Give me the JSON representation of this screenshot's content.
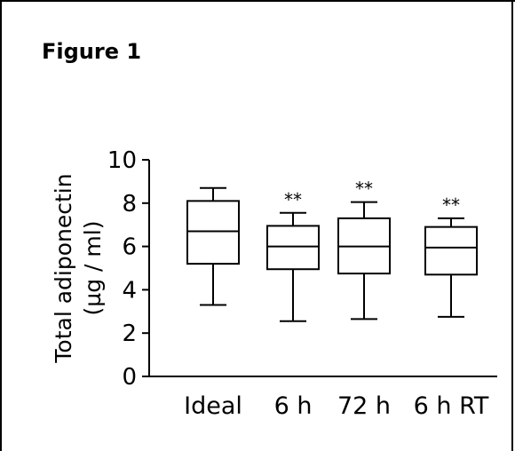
{
  "figure_title": "Figure 1",
  "chart_data": {
    "type": "box",
    "title": "",
    "xlabel": "",
    "ylabel_line1": "Total adiponectin",
    "ylabel_line2": "(µg / ml)",
    "ylim": [
      0,
      10
    ],
    "yticks": [
      "0",
      "2",
      "4",
      "6",
      "8",
      "10"
    ],
    "categories": [
      "Ideal",
      "6 h",
      "72 h",
      "6 h RT"
    ],
    "boxes": [
      {
        "min": 3.3,
        "q1": 5.2,
        "median": 6.7,
        "q3": 8.1,
        "max": 8.7,
        "significance": ""
      },
      {
        "min": 2.55,
        "q1": 4.95,
        "median": 6.0,
        "q3": 6.95,
        "max": 7.55,
        "significance": "**"
      },
      {
        "min": 2.65,
        "q1": 4.75,
        "median": 6.0,
        "q3": 7.3,
        "max": 8.05,
        "significance": "**"
      },
      {
        "min": 2.75,
        "q1": 4.7,
        "median": 5.95,
        "q3": 6.9,
        "max": 7.3,
        "significance": "**"
      }
    ],
    "grid": false,
    "legend": "none"
  }
}
